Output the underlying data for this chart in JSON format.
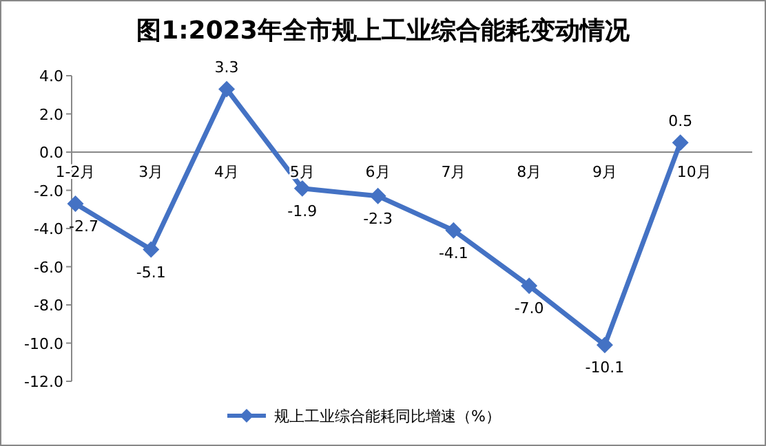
{
  "chart_data": {
    "type": "line",
    "title": "图1:2023年全市规上工业综合能耗变动情况",
    "categories": [
      "1-2月",
      "3月",
      "4月",
      "5月",
      "6月",
      "7月",
      "8月",
      "9月",
      "10月"
    ],
    "series": [
      {
        "name": "规上工业综合能耗同比增速（%）",
        "color": "#4472c4",
        "values": [
          -2.7,
          -5.1,
          3.3,
          -1.9,
          -2.3,
          -4.1,
          -7.0,
          -10.1,
          0.5
        ],
        "value_labels": [
          "-2.7",
          "-5.1",
          "3.3",
          "-1.9",
          "-2.3",
          "-4.1",
          "-7.0",
          "-10.1",
          "0.5"
        ]
      }
    ],
    "ylim": [
      -12,
      4
    ],
    "yticks": [
      {
        "value": 4,
        "label": "4.0"
      },
      {
        "value": 2,
        "label": "2.0"
      },
      {
        "value": 0,
        "label": "0.0"
      },
      {
        "value": -2,
        "label": "-2.0"
      },
      {
        "value": -4,
        "label": "-4.0"
      },
      {
        "value": -6,
        "label": "-6.0"
      },
      {
        "value": -8,
        "label": "-8.0"
      },
      {
        "value": -10,
        "label": "-10.0"
      },
      {
        "value": -12,
        "label": "-12.0"
      }
    ],
    "marker": "diamond",
    "line_style": "solid",
    "legend": "bottom",
    "grid": false
  }
}
